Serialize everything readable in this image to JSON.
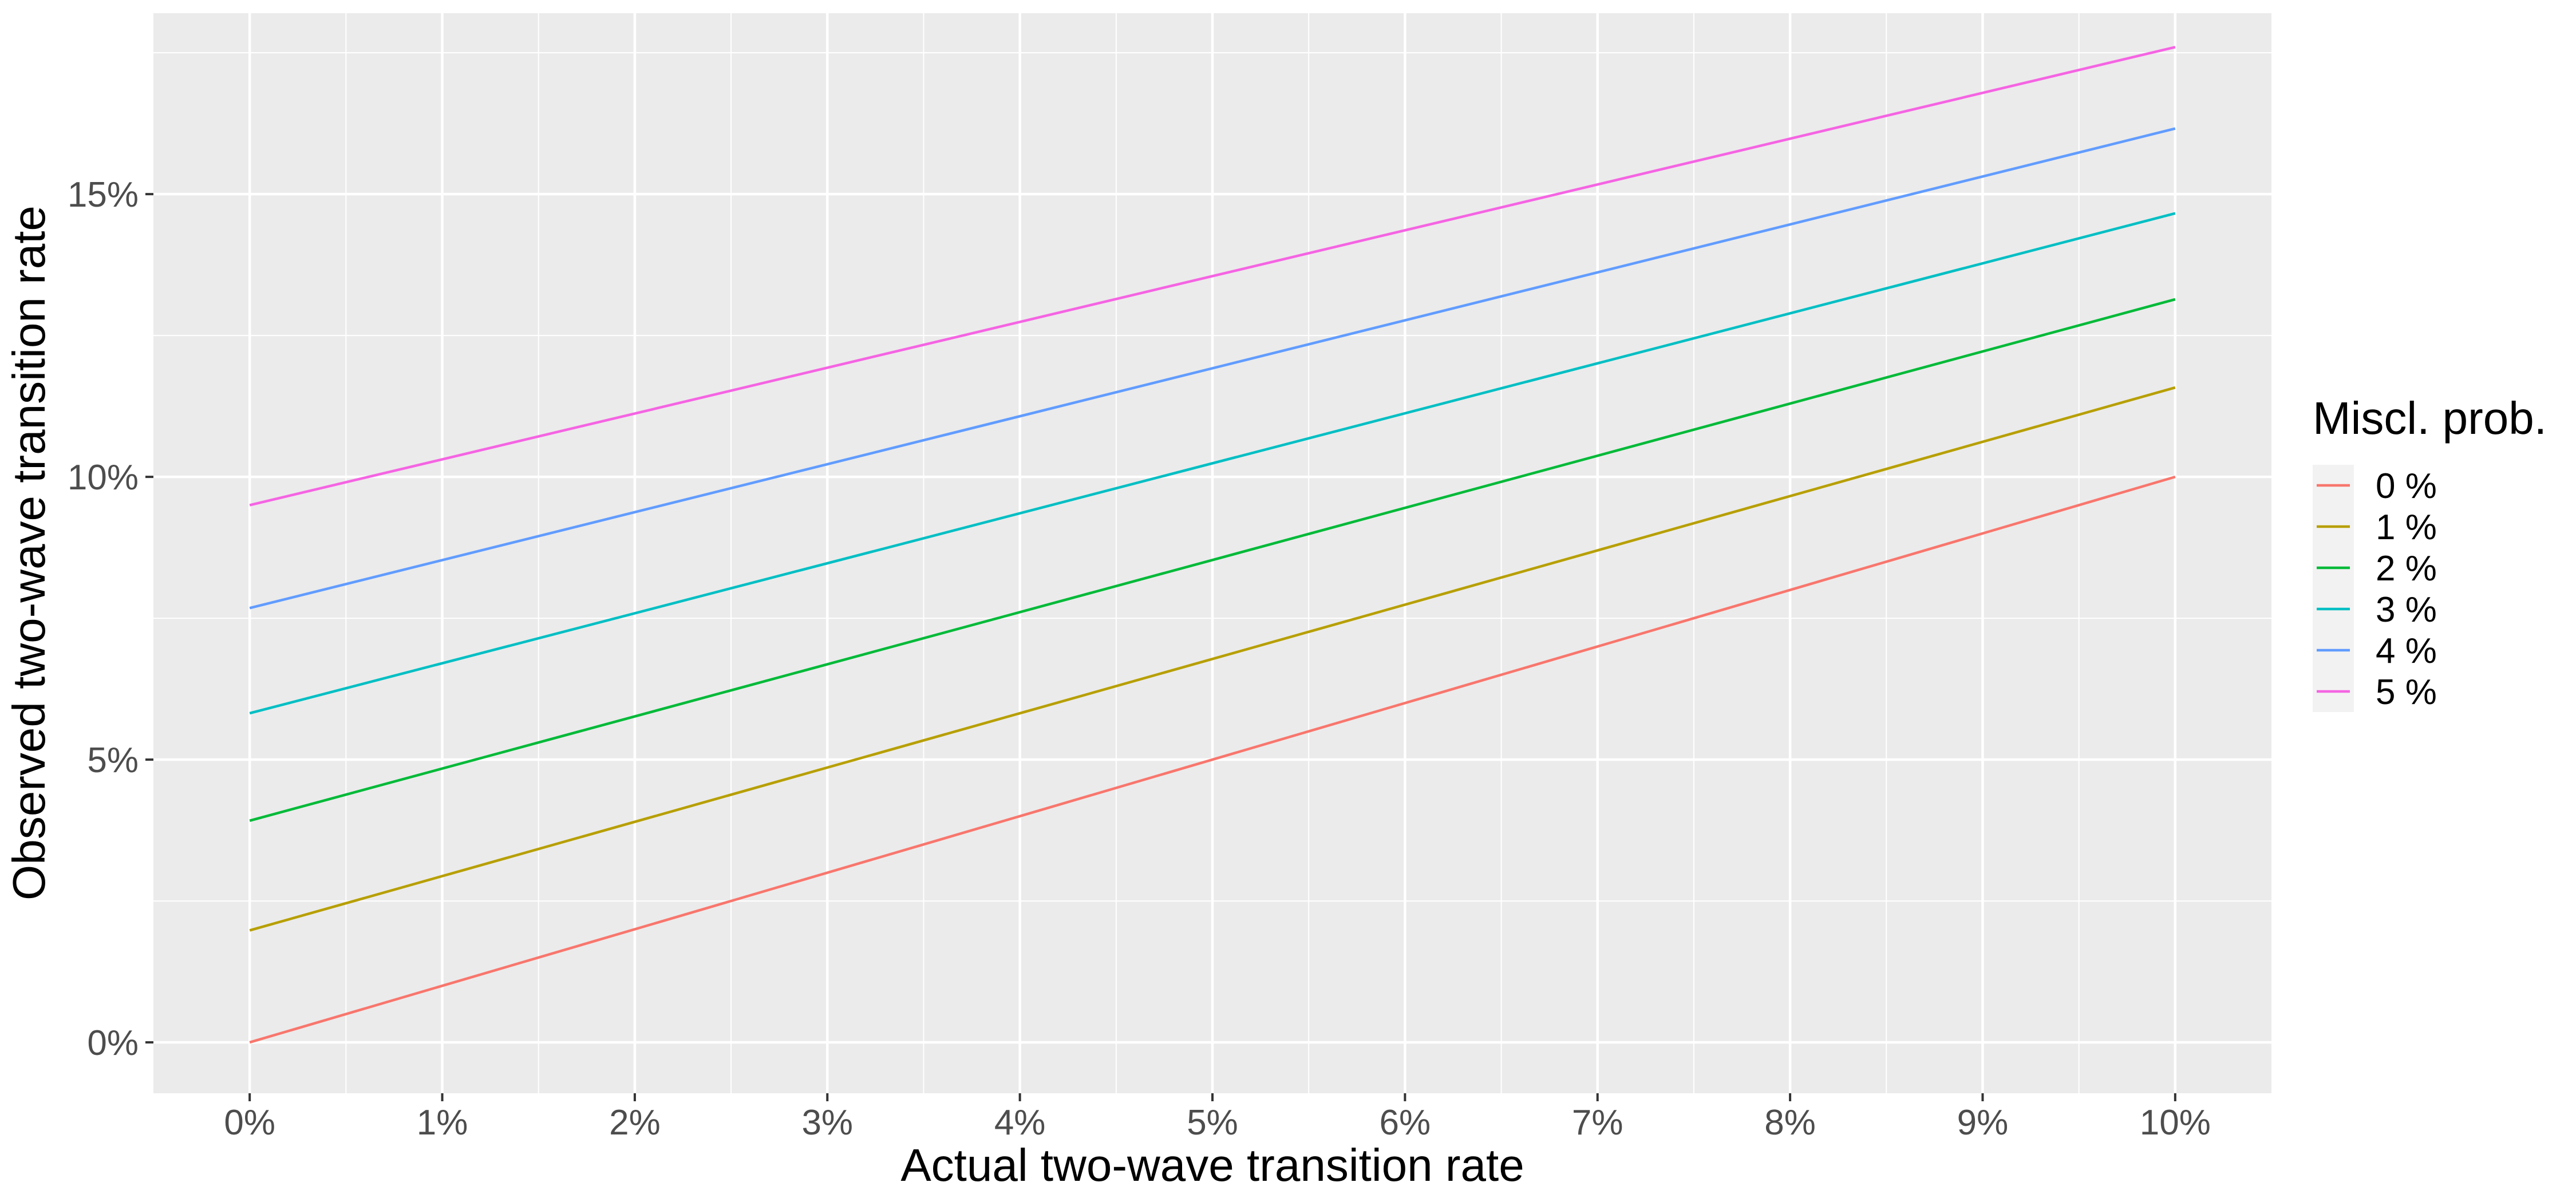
{
  "chart_data": {
    "type": "line",
    "xlabel": "Actual two-wave transition rate",
    "ylabel": "Observed two-wave transition rate",
    "x_ticks": [
      "0%",
      "1%",
      "2%",
      "3%",
      "4%",
      "5%",
      "6%",
      "7%",
      "8%",
      "9%",
      "10%"
    ],
    "y_ticks": [
      "0%",
      "5%",
      "10%",
      "15%"
    ],
    "xlim": [
      -0.5,
      10.5
    ],
    "ylim": [
      -0.9,
      18.2
    ],
    "grid": true,
    "legend": {
      "title": "Miscl. prob.",
      "position": "right"
    },
    "x": [
      0,
      10
    ],
    "series": [
      {
        "name": "0 %",
        "color": "#F8766D",
        "values": [
          0.0,
          10.0
        ]
      },
      {
        "name": "1 %",
        "color": "#B79F00",
        "values": [
          1.98,
          11.58
        ]
      },
      {
        "name": "2 %",
        "color": "#00BA38",
        "values": [
          3.92,
          13.14
        ]
      },
      {
        "name": "3 %",
        "color": "#00BFC4",
        "values": [
          5.82,
          14.66
        ]
      },
      {
        "name": "4 %",
        "color": "#619CFF",
        "values": [
          7.68,
          16.16
        ]
      },
      {
        "name": "5 %",
        "color": "#F564E3",
        "values": [
          9.5,
          17.6
        ]
      }
    ]
  }
}
